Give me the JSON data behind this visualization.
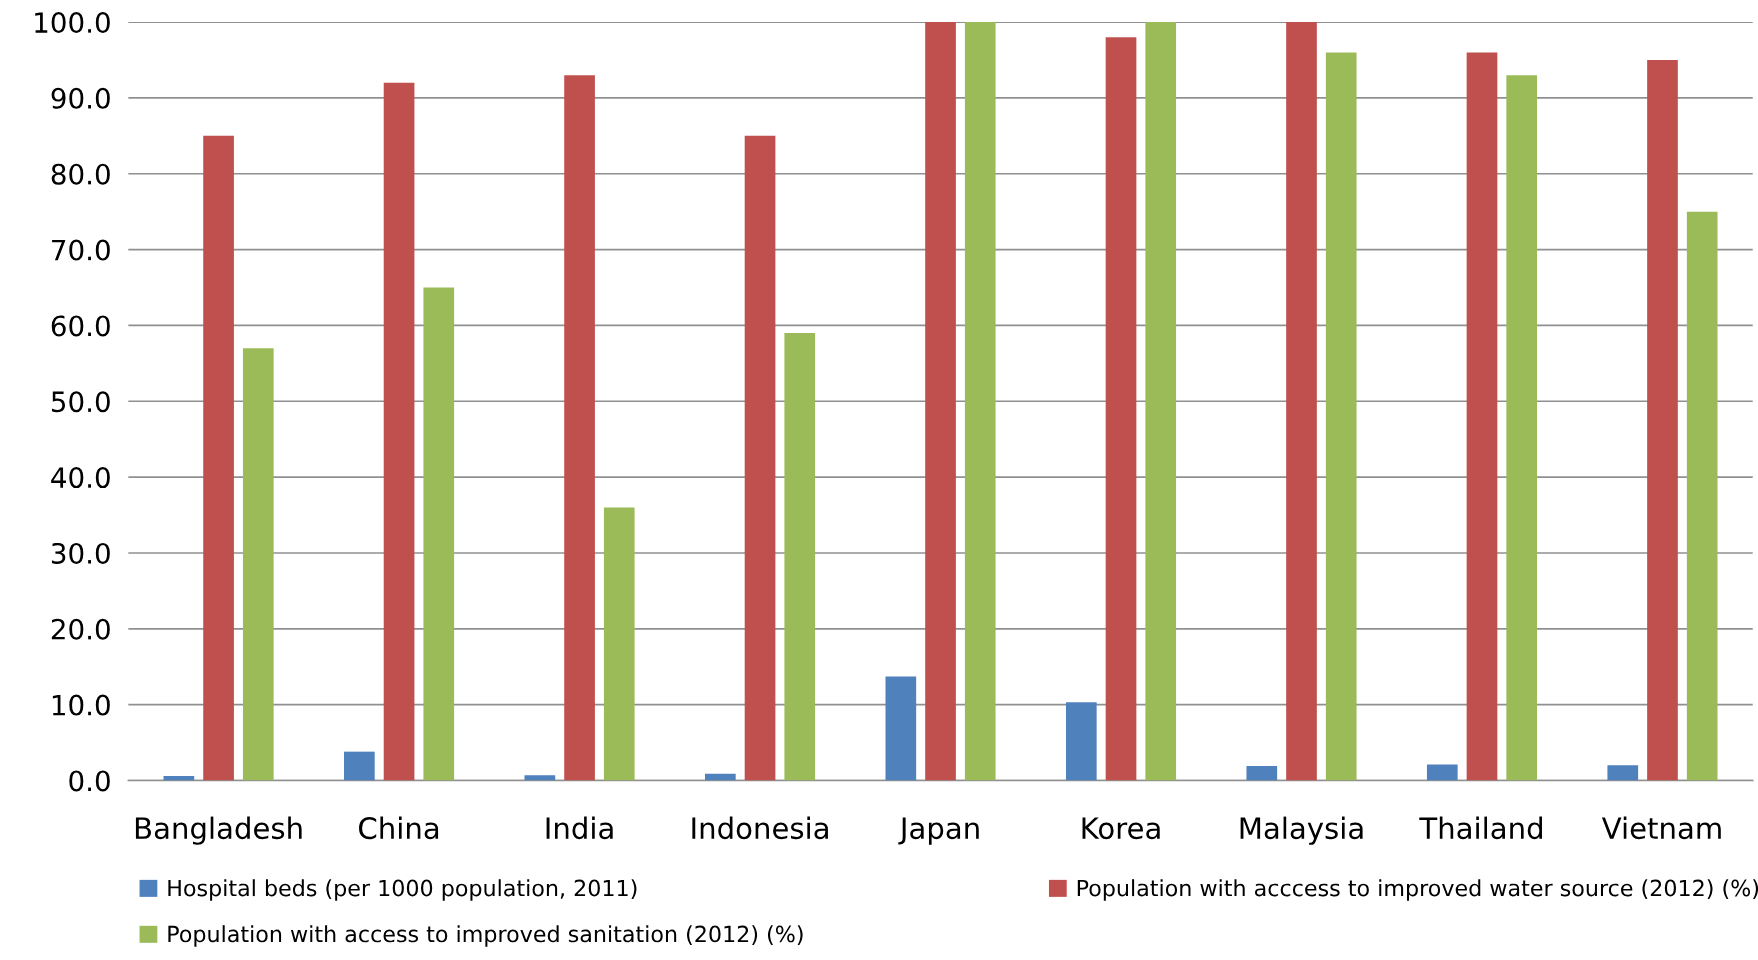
{
  "chart_data": {
    "type": "bar",
    "categories": [
      "Bangladesh",
      "China",
      "India",
      "Indonesia",
      "Japan",
      "Korea",
      "Malaysia",
      "Thailand",
      "Vietnam"
    ],
    "series": [
      {
        "name": "Hospital beds (per 1000 population, 2011)",
        "color": "#4f81bd",
        "values": [
          0.6,
          3.8,
          0.7,
          0.9,
          13.7,
          10.3,
          1.9,
          2.1,
          2.0
        ]
      },
      {
        "name": "Population with acccess to improved water source (2012) (%)",
        "color": "#c0504d",
        "values": [
          85,
          92,
          93,
          85,
          100,
          98,
          100,
          96,
          95
        ]
      },
      {
        "name": "Population with access to improved sanitation (2012) (%)",
        "color": "#9bbb59",
        "values": [
          57,
          65,
          36,
          59,
          100,
          100,
          96,
          93,
          75
        ]
      }
    ],
    "ylim": [
      0,
      100
    ],
    "yticks": [
      {
        "value": 0,
        "label": "0.0"
      },
      {
        "value": 10,
        "label": "10.0"
      },
      {
        "value": 20,
        "label": "20.0"
      },
      {
        "value": 30,
        "label": "30.0"
      },
      {
        "value": 40,
        "label": "40.0"
      },
      {
        "value": 50,
        "label": "50.0"
      },
      {
        "value": 60,
        "label": "60.0"
      },
      {
        "value": 70,
        "label": "70.0"
      },
      {
        "value": 80,
        "label": "80.0"
      },
      {
        "value": 90,
        "label": "90.0"
      },
      {
        "value": 100,
        "label": "100.0"
      }
    ],
    "grid": "y",
    "legend": "bottom"
  }
}
